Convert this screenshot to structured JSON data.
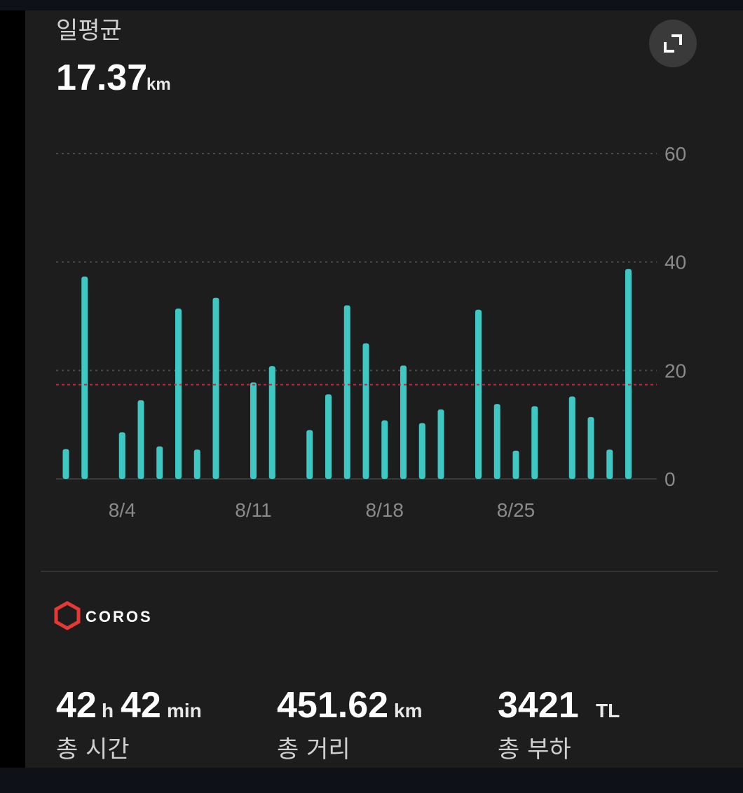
{
  "header": {
    "avg_label": "일평균",
    "avg_unit": "km"
  },
  "brand": "COROS",
  "chart_data": {
    "type": "bar",
    "categories": [
      null,
      null,
      null,
      "8/4",
      null,
      null,
      null,
      null,
      null,
      null,
      "8/11",
      null,
      null,
      null,
      null,
      null,
      null,
      "8/18",
      null,
      null,
      null,
      null,
      null,
      null,
      "8/25",
      null,
      null,
      null,
      null,
      null,
      null
    ],
    "values": [
      5.5,
      37.3,
      0,
      8.6,
      14.5,
      6,
      31.4,
      5.4,
      33.4,
      0,
      17.8,
      20.8,
      0,
      9,
      15.6,
      32,
      25,
      10.8,
      20.9,
      10.3,
      12.8,
      0,
      31.2,
      13.8,
      5.2,
      13.4,
      0,
      15.2,
      11.4,
      5.4,
      38.7
    ],
    "color": "#3ec8c4",
    "average_line": 17.37,
    "average_color": "#c0283c",
    "ylim": [
      0,
      60
    ],
    "yticks": [
      0,
      20,
      40,
      60
    ],
    "grid": true
  },
  "stats": [
    {
      "hours": "42",
      "hours_unit": "h",
      "minutes": "42",
      "minutes_unit": "min",
      "label": "총 시간"
    },
    {
      "value": "451.62",
      "unit": "km",
      "label": "총 거리"
    },
    {
      "value": "3421",
      "unit": "TL",
      "label": "총 부하"
    }
  ]
}
